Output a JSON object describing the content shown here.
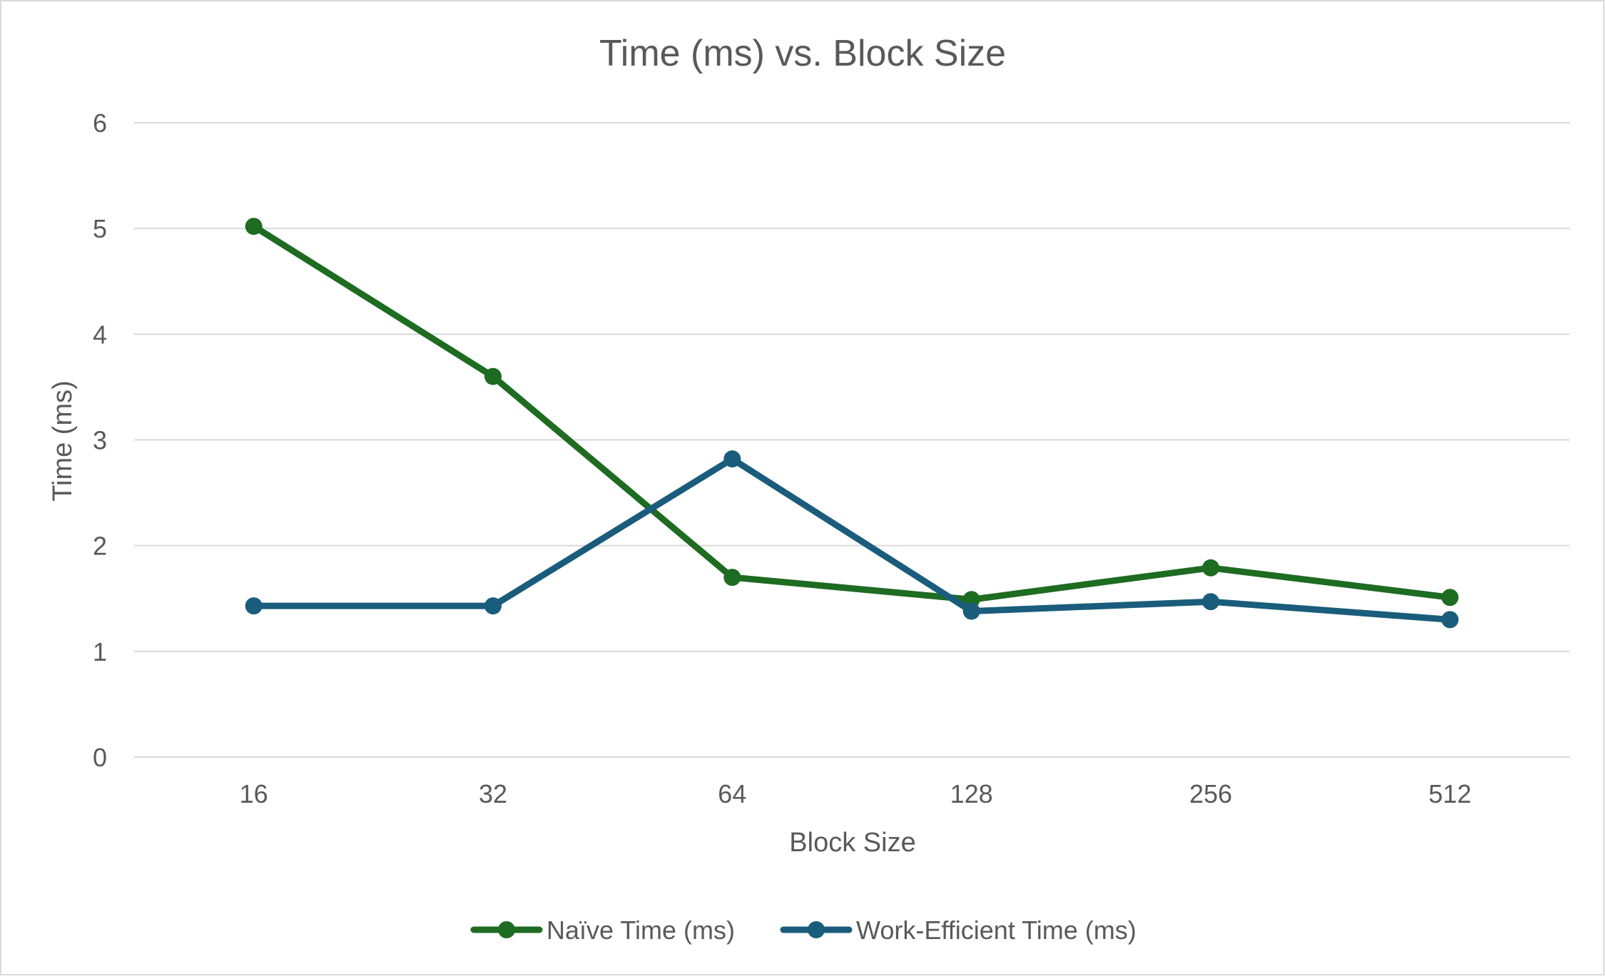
{
  "chart_data": {
    "type": "line",
    "title": "Time (ms) vs. Block Size",
    "xlabel": "Block Size",
    "ylabel": "Time (ms)",
    "categories": [
      "16",
      "32",
      "64",
      "128",
      "256",
      "512"
    ],
    "ylim": [
      0,
      6
    ],
    "yticks": [
      0,
      1,
      2,
      3,
      4,
      5,
      6
    ],
    "grid": true,
    "legend_position": "bottom",
    "series": [
      {
        "name": "Naïve Time (ms)",
        "color": "#1e6b22",
        "values": [
          5.02,
          3.6,
          1.7,
          1.49,
          1.79,
          1.51
        ]
      },
      {
        "name": "Work-Efficient Time (ms)",
        "color": "#1a5c7c",
        "values": [
          1.43,
          1.43,
          2.82,
          1.38,
          1.47,
          1.3
        ]
      }
    ],
    "colors": {
      "gridline": "#d9d9d9",
      "text": "#595959"
    }
  }
}
